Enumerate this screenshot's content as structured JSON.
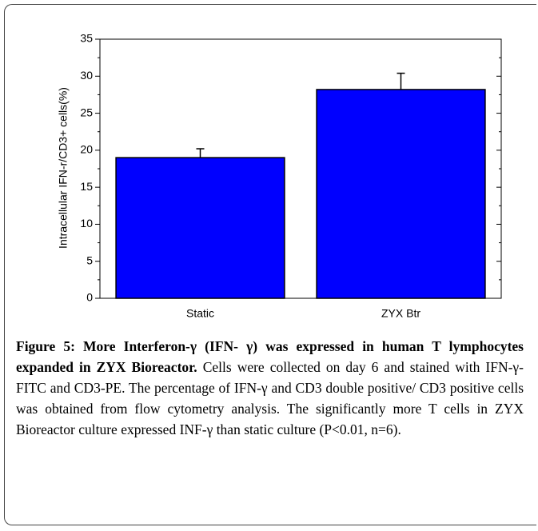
{
  "chart_data": {
    "type": "bar",
    "ylabel": "Intracellular IFN-r/CD3+ cells(%)",
    "categories": [
      "Static",
      "ZYX Btr"
    ],
    "values": [
      19,
      28.2
    ],
    "errors": [
      1.2,
      2.2
    ],
    "color": "#0000ff",
    "ylim": [
      0,
      35
    ],
    "yticks": [
      0,
      5,
      10,
      15,
      20,
      25,
      30,
      35
    ],
    "yticks_minor": [
      2.5,
      7.5,
      12.5,
      17.5,
      22.5,
      27.5,
      32.5
    ]
  },
  "caption": {
    "label": "Figure 5: More Interferon-γ (IFN- γ) was expressed in human T lymphocytes expanded in ZYX Bioreactor.",
    "text": "Cells were collected on day 6 and stained with IFN-γ-FITC and CD3-PE. The percentage of IFN-γ and CD3 double positive/ CD3 positive cells was obtained from flow cytometry analysis. The significantly more T cells in ZYX Bioreactor culture expressed INF-γ than static culture (P<0.01, n=6)."
  }
}
